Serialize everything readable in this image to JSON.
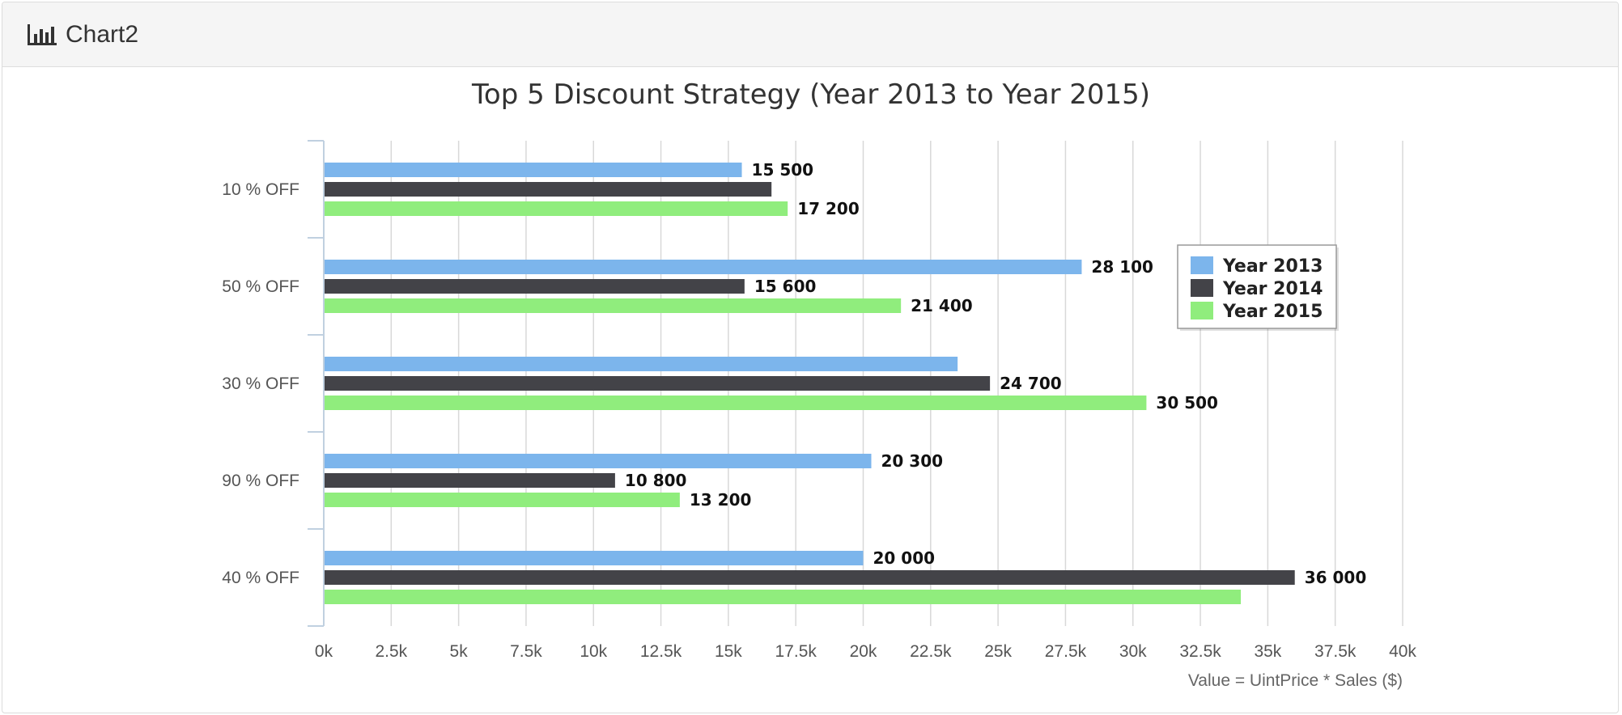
{
  "panel": {
    "title": "Chart2",
    "icon": "bar-chart-icon"
  },
  "chart_data": {
    "type": "bar",
    "orientation": "horizontal",
    "title": "Top 5 Discount Strategy (Year 2013 to Year 2015)",
    "xlabel": "Value = UintPrice * Sales ($)",
    "ylabel": "",
    "categories": [
      "10 % OFF",
      "50 % OFF",
      "30 % OFF",
      "90 % OFF",
      "40 % OFF"
    ],
    "xlim": [
      0,
      40000
    ],
    "tick_labels": [
      "0k",
      "2.5k",
      "5k",
      "7.5k",
      "10k",
      "12.5k",
      "15k",
      "17.5k",
      "20k",
      "22.5k",
      "25k",
      "27.5k",
      "30k",
      "32.5k",
      "35k",
      "37.5k",
      "40k"
    ],
    "grid": true,
    "legend_position": "right",
    "series": [
      {
        "name": "Year 2013",
        "color": "#7cb5ec",
        "values": [
          15500,
          28100,
          23500,
          20300,
          20000
        ],
        "labels": [
          "15 500",
          "28 100",
          "",
          "20 300",
          "20 000"
        ]
      },
      {
        "name": "Year 2014",
        "color": "#434348",
        "values": [
          16600,
          15600,
          24700,
          10800,
          36000
        ],
        "labels": [
          "",
          "15 600",
          "24 700",
          "10 800",
          "36 000"
        ]
      },
      {
        "name": "Year 2015",
        "color": "#90ed7d",
        "values": [
          17200,
          21400,
          30500,
          13200,
          34000
        ],
        "labels": [
          "17 200",
          "21 400",
          "30 500",
          "13 200",
          ""
        ]
      }
    ]
  }
}
